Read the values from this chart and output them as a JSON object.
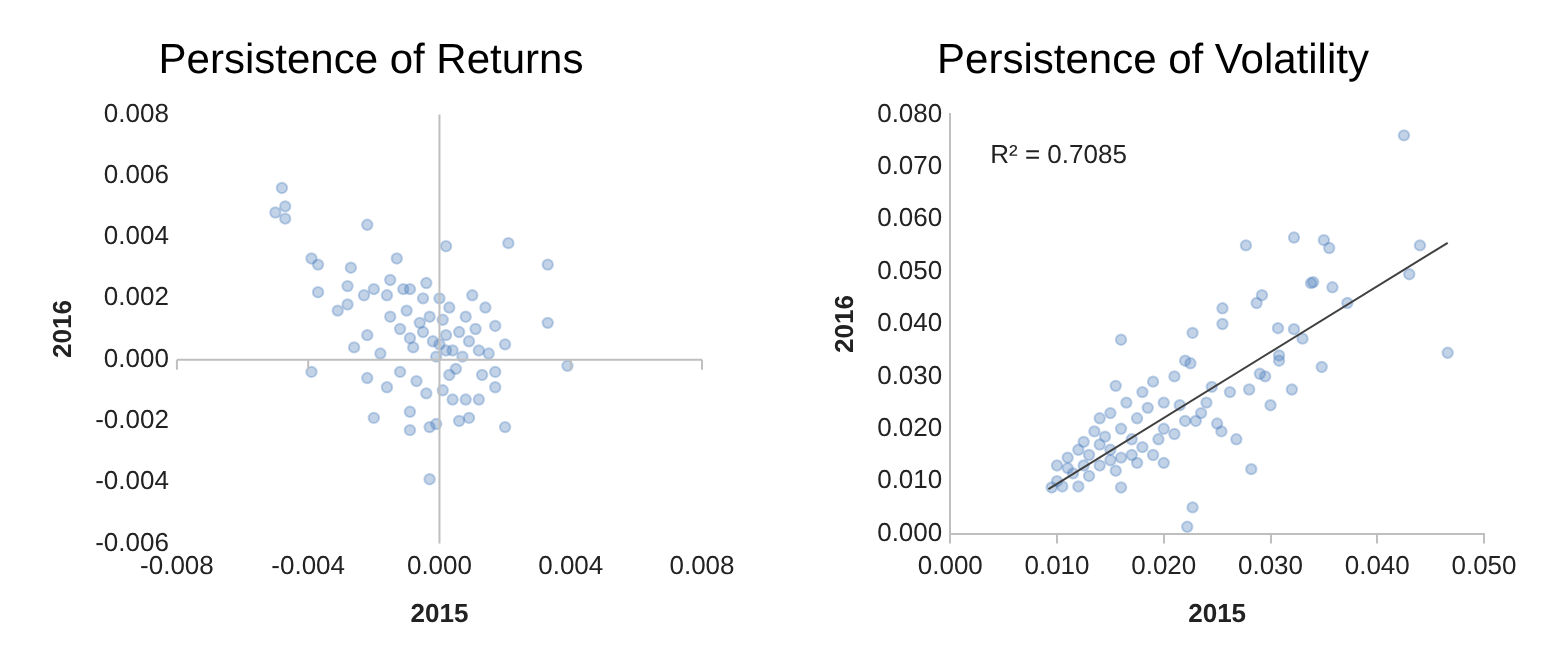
{
  "chart_data": [
    {
      "type": "scatter",
      "title": "Persistence of Returns",
      "xlabel": "2015",
      "ylabel": "2016",
      "marker": "circle",
      "xlim": [
        -0.008,
        0.008
      ],
      "ylim": [
        -0.006,
        0.008
      ],
      "xticks": [
        {
          "value": -0.008,
          "label": "-0.008"
        },
        {
          "value": -0.004,
          "label": "-0.004"
        },
        {
          "value": 0,
          "label": "0.000"
        },
        {
          "value": 0.004,
          "label": "0.004"
        },
        {
          "value": 0.008,
          "label": "0.008"
        }
      ],
      "yticks": [
        {
          "value": -0.006,
          "label": "-0.006"
        },
        {
          "value": -0.004,
          "label": "-0.004"
        },
        {
          "value": -0.002,
          "label": "-0.002"
        },
        {
          "value": 0,
          "label": "0.000"
        },
        {
          "value": 0.002,
          "label": "0.002"
        },
        {
          "value": 0.004,
          "label": "0.004"
        },
        {
          "value": 0.006,
          "label": "0.006"
        },
        {
          "value": 0.008,
          "label": "0.008"
        }
      ],
      "series": [
        {
          "color": "#4f81bd",
          "x": [
            -0.0048,
            -0.005,
            -0.0047,
            -0.0047,
            -0.0039,
            -0.0037,
            -0.0037,
            -0.0039,
            -0.0031,
            -0.0027,
            -0.0028,
            -0.0028,
            -0.0026,
            -0.0022,
            -0.002,
            -0.0023,
            -0.0022,
            -0.0022,
            -0.002,
            -0.0016,
            -0.0015,
            -0.0013,
            -0.0011,
            -0.0009,
            -0.0009,
            -0.0009,
            -0.0003,
            -0.0003,
            -0.0001,
            0.0002,
            0.0006,
            0.0009,
            0.0021,
            0.0033,
            0.0033,
            0.0039,
            0.002,
            0.0012,
            0.0017,
            0.001,
            0.0014,
            0.002,
            0.0017,
            0.0017,
            -0.0004,
            -0.0005,
            -0.0012,
            -0.0015,
            -0.0018,
            -0.0016,
            -0.0012,
            -0.0007,
            -0.0004,
            0.0001,
            0.0004,
            0.0008,
            0.0013,
            0.0015,
            0,
            0.0002,
            -0.0002,
            0.0004,
            0.0006,
            -0.0005,
            0.0001,
            0.0003,
            -0.0003,
            0.0007,
            0.0009,
            -0.0008,
            0.0005,
            -0.0001,
            0.0003,
            -0.0006,
            0.0011,
            0,
            -0.001,
            0.0008,
            0.0012,
            -0.0009,
            0.0002
          ],
          "values": [
            0.0056,
            0.0048,
            0.005,
            0.0046,
            0.0033,
            0.0031,
            0.0022,
            -0.0004,
            0.0016,
            0.003,
            0.0024,
            0.0018,
            0.0004,
            0.0044,
            0.0023,
            0.0021,
            0.0008,
            -0.0006,
            -0.0019,
            0.0021,
            0.0026,
            0.0033,
            0.0023,
            0.0023,
            -0.0017,
            -0.0023,
            -0.0022,
            -0.0039,
            -0.0021,
            0.0037,
            -0.002,
            -0.0019,
            0.0038,
            0.0031,
            0.0012,
            -0.0002,
            -0.0022,
            -0.0013,
            -0.0009,
            0.0021,
            0.0017,
            0.0005,
            0.0011,
            -0.0004,
            0.0025,
            0.002,
            0.001,
            0.0014,
            0.0002,
            -0.0009,
            -0.0004,
            -0.0007,
            -0.0011,
            -0.001,
            -0.0013,
            -0.0013,
            -0.0005,
            0.0002,
            0.0005,
            0.0008,
            0.0006,
            0.0003,
            0.0009,
            0.0009,
            0.0013,
            0.0017,
            0.0014,
            0.0001,
            0.0006,
            0.0004,
            -0.0003,
            0.0001,
            -0.0005,
            0.0012,
            0.001,
            0.002,
            0.0016,
            0.0014,
            0.0003,
            0.0007,
            0.0003
          ]
        }
      ]
    },
    {
      "type": "scatter",
      "title": "Persistence of Volatility",
      "xlabel": "2015",
      "ylabel": "2016",
      "marker": "circle",
      "xlim": [
        0,
        0.05
      ],
      "ylim": [
        0,
        0.08
      ],
      "xticks": [
        {
          "value": 0,
          "label": "0.000"
        },
        {
          "value": 0.01,
          "label": "0.010"
        },
        {
          "value": 0.02,
          "label": "0.020"
        },
        {
          "value": 0.03,
          "label": "0.030"
        },
        {
          "value": 0.04,
          "label": "0.040"
        },
        {
          "value": 0.05,
          "label": "0.050"
        }
      ],
      "yticks": [
        {
          "value": 0,
          "label": "0.000"
        },
        {
          "value": 0.01,
          "label": "0.010"
        },
        {
          "value": 0.02,
          "label": "0.020"
        },
        {
          "value": 0.03,
          "label": "0.030"
        },
        {
          "value": 0.04,
          "label": "0.040"
        },
        {
          "value": 0.05,
          "label": "0.050"
        },
        {
          "value": 0.06,
          "label": "0.060"
        },
        {
          "value": 0.07,
          "label": "0.070"
        },
        {
          "value": 0.08,
          "label": "0.080"
        }
      ],
      "annotations": [
        "R² = 0.7085"
      ],
      "series": [
        {
          "color": "#4f81bd",
          "x": [
            0.0425,
            0.044,
            0.043,
            0.0466,
            0.035,
            0.0355,
            0.0322,
            0.0277,
            0.034,
            0.0358,
            0.0338,
            0.0372,
            0.0292,
            0.0287,
            0.0255,
            0.0255,
            0.016,
            0.0227,
            0.0307,
            0.0322,
            0.033,
            0.0308,
            0.0308,
            0.0348,
            0.032,
            0.03,
            0.0282,
            0.0227,
            0.0222,
            0.0268,
            0.0254,
            0.029,
            0.0295,
            0.028,
            0.0262,
            0.0245,
            0.0225,
            0.022,
            0.021,
            0.019,
            0.0155,
            0.018,
            0.02,
            0.0215,
            0.0235,
            0.025,
            0.022,
            0.02,
            0.02,
            0.019,
            0.0175,
            0.017,
            0.016,
            0.015,
            0.014,
            0.016,
            0.016,
            0.015,
            0.014,
            0.013,
            0.012,
            0.0125,
            0.0115,
            0.011,
            0.01,
            0.0095,
            0.0105,
            0.012,
            0.013,
            0.014,
            0.015,
            0.017,
            0.018,
            0.0185,
            0.0165,
            0.0145,
            0.0135,
            0.0125,
            0.011,
            0.01,
            0.0175,
            0.0195,
            0.021,
            0.023,
            0.024,
            0.0155
          ],
          "values": [
            0.076,
            0.055,
            0.0495,
            0.0345,
            0.056,
            0.0545,
            0.0565,
            0.055,
            0.048,
            0.047,
            0.0478,
            0.044,
            0.0455,
            0.044,
            0.043,
            0.04,
            0.037,
            0.0383,
            0.0392,
            0.039,
            0.0372,
            0.034,
            0.033,
            0.0318,
            0.0275,
            0.0245,
            0.0123,
            0.005,
            0.0013,
            0.018,
            0.0195,
            0.0305,
            0.03,
            0.0275,
            0.027,
            0.028,
            0.0325,
            0.033,
            0.03,
            0.029,
            0.0282,
            0.027,
            0.025,
            0.0245,
            0.023,
            0.021,
            0.0215,
            0.02,
            0.0135,
            0.015,
            0.022,
            0.018,
            0.02,
            0.023,
            0.022,
            0.0145,
            0.0088,
            0.016,
            0.017,
            0.015,
            0.016,
            0.013,
            0.0115,
            0.0125,
            0.01,
            0.0088,
            0.009,
            0.009,
            0.011,
            0.013,
            0.014,
            0.015,
            0.0165,
            0.024,
            0.025,
            0.0185,
            0.0195,
            0.0175,
            0.0145,
            0.013,
            0.0135,
            0.018,
            0.019,
            0.0215,
            0.025,
            0.012
          ]
        },
        {
          "type": "line",
          "color": "#404040",
          "marker": "none",
          "x": [
            0.0092,
            0.0466
          ],
          "values": [
            0.0085,
            0.0555
          ]
        }
      ]
    }
  ]
}
